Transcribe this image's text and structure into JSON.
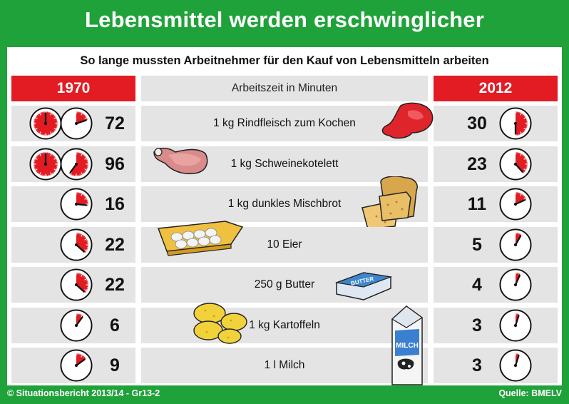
{
  "title": "Lebensmittel werden erschwinglicher",
  "subtitle": "So lange mussten Arbeitnehmer für den Kauf von Lebensmitteln arbeiten",
  "footer": {
    "left": "© Situationsbericht 2013/14 - Gr13-2",
    "right": "Quelle: BMELV"
  },
  "colors": {
    "background_green": "#1fa23a",
    "accent_red": "#e31b23",
    "row_grey": "#e4e4e4"
  },
  "chart_data": {
    "type": "table",
    "title": "Lebensmittel werden erschwinglicher",
    "subtitle": "So lange mussten Arbeitnehmer für den Kauf von Lebensmitteln arbeiten",
    "column_headers": [
      "1970",
      "Arbeitszeit in Minuten",
      "2012"
    ],
    "rows": [
      {
        "item": "1 kg Rindfleisch zum Kochen",
        "y1970": 72,
        "y2012": 30,
        "icon": "beef-icon"
      },
      {
        "item": "1 kg Schweinekotelett",
        "y1970": 96,
        "y2012": 23,
        "icon": "pork-chop-icon"
      },
      {
        "item": "1 kg dunkles Mischbrot",
        "y1970": 16,
        "y2012": 11,
        "icon": "bread-icon"
      },
      {
        "item": "10 Eier",
        "y1970": 22,
        "y2012": 5,
        "icon": "egg-carton-icon"
      },
      {
        "item": "250 g Butter",
        "y1970": 22,
        "y2012": 4,
        "icon": "butter-icon"
      },
      {
        "item": "1 kg Kartoffeln",
        "y1970": 6,
        "y2012": 3,
        "icon": "potatoes-icon"
      },
      {
        "item": "1 l Milch",
        "y1970": 9,
        "y2012": 3,
        "icon": "milk-carton-icon"
      }
    ],
    "unit": "Minuten",
    "butter_pack_label": "BUTTER",
    "milk_pack_label": "MILCH"
  }
}
